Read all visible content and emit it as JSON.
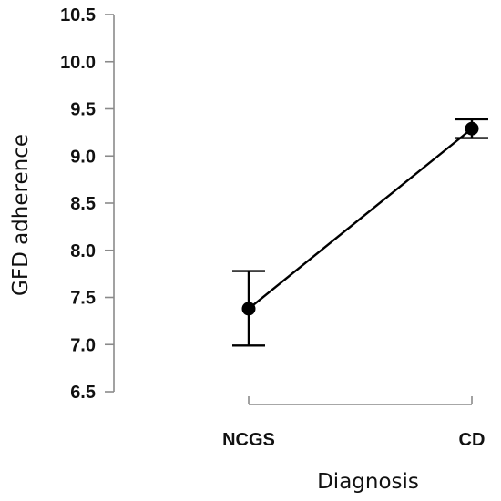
{
  "chart_data": {
    "type": "line",
    "title": "",
    "xlabel": "Diagnosis",
    "ylabel": "GFD adherence",
    "categories": [
      "NCGS",
      "CD"
    ],
    "series": [
      {
        "values": [
          7.38,
          9.29
        ],
        "error_lower": [
          6.99,
          9.19
        ],
        "error_upper": [
          7.78,
          9.39
        ]
      }
    ],
    "ylim": [
      6.5,
      10.5
    ],
    "yticks": [
      "6.5",
      "7.0",
      "7.5",
      "8.0",
      "8.5",
      "9.0",
      "9.5",
      "10.0",
      "10.5"
    ],
    "grid": false,
    "legend": "none"
  }
}
